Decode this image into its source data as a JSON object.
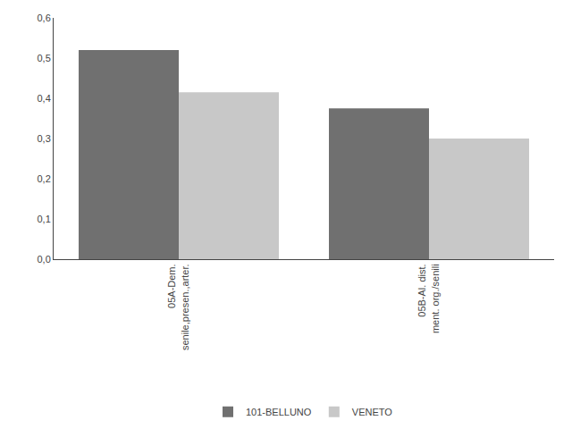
{
  "chart_data": {
    "type": "bar",
    "categories": [
      "05A-Dem.\nsenile,presen.,arter.",
      "05B-Al. dist.\nment. org./senili"
    ],
    "series": [
      {
        "name": "101-BELLUNO",
        "color": "#707070",
        "values": [
          0.52,
          0.375
        ]
      },
      {
        "name": "VENETO",
        "color": "#c8c8c8",
        "values": [
          0.415,
          0.3
        ]
      }
    ],
    "ylim": [
      0,
      0.6
    ],
    "yticks": [
      {
        "value": 0.0,
        "label": "0,0"
      },
      {
        "value": 0.1,
        "label": "0,1"
      },
      {
        "value": 0.2,
        "label": "0,2"
      },
      {
        "value": 0.3,
        "label": "0,3"
      },
      {
        "value": 0.4,
        "label": "0,4"
      },
      {
        "value": 0.5,
        "label": "0,5"
      },
      {
        "value": 0.6,
        "label": "0,6"
      }
    ],
    "grid": false,
    "legend": "bottom"
  }
}
